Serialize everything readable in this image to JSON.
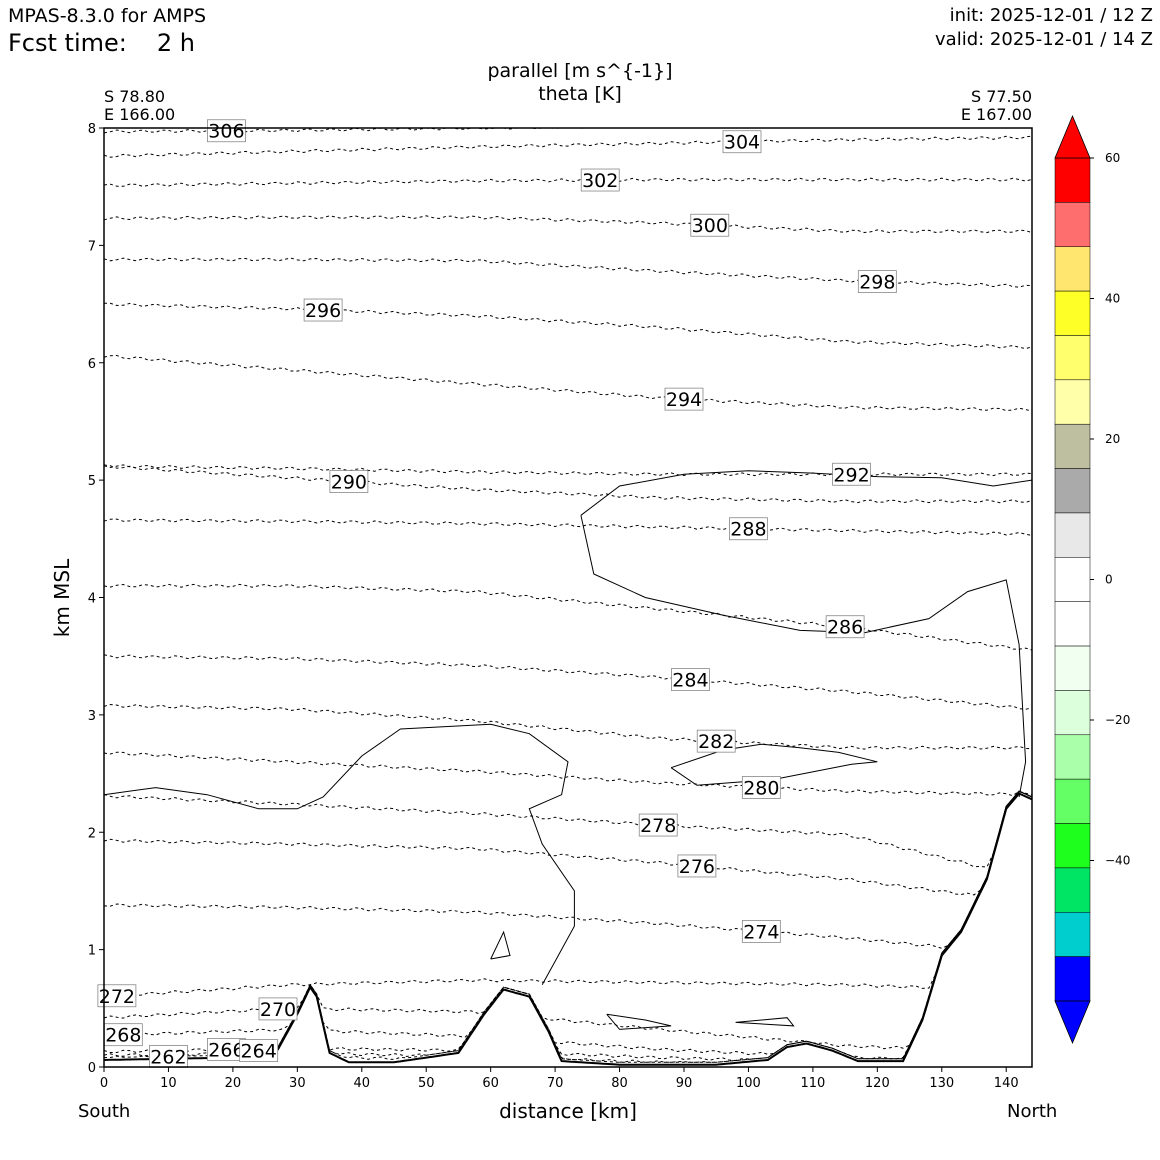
{
  "header": {
    "model": "MPAS-8.3.0 for AMPS",
    "fcst_label": "Fcst time:",
    "fcst_value": "2 h",
    "init": "init: 2025-12-01 / 12 Z",
    "valid": "valid: 2025-12-01 / 14 Z"
  },
  "corners": {
    "left_lat": "S 78.80",
    "left_lon": "E 166.00",
    "right_lat": "S 77.50",
    "right_lon": "E 167.00"
  },
  "chart_data": {
    "type": "line",
    "title": "parallel [m s^{-1}]",
    "subtitle": "theta [K]",
    "xlabel": "distance [km]",
    "ylabel": "km MSL",
    "xlim": [
      0,
      144
    ],
    "ylim": [
      0,
      8
    ],
    "x_ticks": [
      0,
      10,
      20,
      30,
      40,
      50,
      60,
      70,
      80,
      90,
      100,
      110,
      120,
      130,
      140
    ],
    "y_ticks": [
      0,
      1,
      2,
      3,
      4,
      5,
      6,
      7,
      8
    ],
    "left_end_label": "South",
    "right_end_label": "North",
    "colorbar": {
      "ticks": [
        60,
        40,
        20,
        0,
        -20,
        -40
      ],
      "levels": [
        60,
        52,
        44,
        36,
        28,
        20,
        12,
        4,
        0,
        -4,
        -12,
        -20,
        -28,
        -36,
        -44,
        -52,
        -60
      ],
      "colors": [
        "#ff0000",
        "#ff6e6e",
        "#ffe66e",
        "#ffff28",
        "#ffff6e",
        "#ffffaa",
        "#bebea0",
        "#aaaaaa",
        "#e8e8e8",
        "#ffffff",
        "#ffffff",
        "#f0fff0",
        "#dcffdc",
        "#aaffaa",
        "#64ff64",
        "#1eff1e",
        "#00e664",
        "#00cdcd",
        "#0000ff"
      ],
      "over_color": "#ff0000",
      "under_color": "#0000ff"
    },
    "terrain": [
      [
        0,
        0.06
      ],
      [
        20,
        0.08
      ],
      [
        27,
        0.15
      ],
      [
        30,
        0.45
      ],
      [
        32,
        0.68
      ],
      [
        33,
        0.6
      ],
      [
        35,
        0.12
      ],
      [
        38,
        0.04
      ],
      [
        45,
        0.04
      ],
      [
        55,
        0.12
      ],
      [
        59,
        0.45
      ],
      [
        62,
        0.66
      ],
      [
        66,
        0.6
      ],
      [
        69,
        0.3
      ],
      [
        71,
        0.05
      ],
      [
        80,
        0.02
      ],
      [
        95,
        0.02
      ],
      [
        103,
        0.06
      ],
      [
        106,
        0.17
      ],
      [
        109,
        0.2
      ],
      [
        113,
        0.14
      ],
      [
        117,
        0.05
      ],
      [
        124,
        0.05
      ],
      [
        127,
        0.4
      ],
      [
        130,
        0.95
      ],
      [
        133,
        1.15
      ],
      [
        137,
        1.6
      ],
      [
        140,
        2.2
      ],
      [
        142,
        2.33
      ],
      [
        144,
        2.28
      ]
    ],
    "theta": [
      {
        "label": "306",
        "y": [
          7.97,
          7.98,
          8.0,
          8.02,
          8.04,
          8.04
        ]
      },
      {
        "label": "304",
        "y": [
          7.76,
          7.8,
          7.84,
          7.87,
          7.9,
          7.92
        ]
      },
      {
        "label": "302",
        "y": [
          7.51,
          7.53,
          7.55,
          7.56,
          7.56,
          7.56
        ]
      },
      {
        "label": "300",
        "y": [
          7.23,
          7.24,
          7.24,
          7.19,
          7.12,
          7.12
        ]
      },
      {
        "label": "298",
        "y": [
          6.88,
          6.88,
          6.87,
          6.78,
          6.7,
          6.65
        ]
      },
      {
        "label": "296",
        "y": [
          6.5,
          6.46,
          6.4,
          6.3,
          6.18,
          6.13
        ]
      },
      {
        "label": "294",
        "y": [
          6.06,
          5.94,
          5.82,
          5.7,
          5.62,
          5.6
        ]
      },
      {
        "label": "290",
        "y": [
          5.12,
          5.02,
          4.92,
          4.85,
          4.82,
          4.82
        ]
      },
      {
        "label": "292",
        "y": [
          5.12,
          5.1,
          5.07,
          5.05,
          5.05,
          5.05
        ]
      },
      {
        "label": "288",
        "y": [
          4.66,
          4.65,
          4.63,
          4.6,
          4.57,
          4.54
        ]
      },
      {
        "label": "286",
        "y": [
          4.1,
          4.1,
          4.05,
          3.9,
          3.75,
          3.55
        ]
      },
      {
        "label": "284",
        "y": [
          3.5,
          3.48,
          3.42,
          3.32,
          3.2,
          3.05
        ]
      },
      {
        "label": "282",
        "y": [
          3.08,
          3.05,
          2.95,
          2.8,
          2.72,
          2.72
        ]
      },
      {
        "label": "280",
        "y": [
          2.68,
          2.6,
          2.52,
          2.42,
          2.35,
          2.32
        ]
      },
      {
        "label": "278",
        "y": [
          2.31,
          2.24,
          2.16,
          2.06,
          1.98,
          1.6
        ]
      },
      {
        "label": "276",
        "y": [
          1.93,
          1.9,
          1.86,
          1.74,
          1.6,
          1.4
        ]
      },
      {
        "label": "274",
        "y": [
          1.38,
          1.36,
          1.32,
          1.22,
          1.1,
          0.95
        ]
      },
      {
        "label": "272",
        "y": [
          0.6,
          0.7,
          0.74,
          0.72,
          0.7,
          0.65
        ]
      },
      {
        "label": "270",
        "y": [
          0.42,
          0.5,
          0.47,
          0.32,
          0.18,
          0.12
        ]
      },
      {
        "label": "268",
        "y": [
          0.27,
          0.32,
          0.26,
          0.15,
          0.08,
          0.05
        ]
      },
      {
        "label": "266",
        "y": [
          0.13,
          0.16,
          0.14,
          0.08,
          0.04,
          0.03
        ]
      },
      {
        "label": "264",
        "y": [
          0.1,
          0.12,
          0.09,
          0.04,
          0.02,
          0.02
        ]
      },
      {
        "label": "262",
        "y": [
          0.08,
          0.09,
          0.06,
          0.02,
          0.01,
          0.01
        ]
      }
    ]
  }
}
